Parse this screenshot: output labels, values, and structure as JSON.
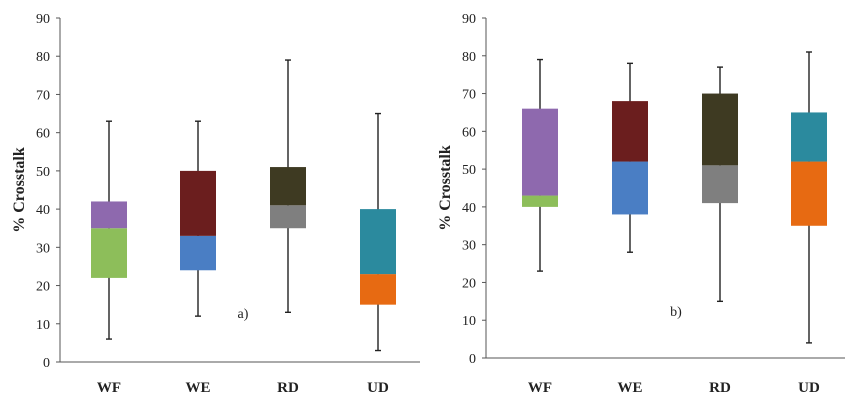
{
  "chart_data": [
    {
      "type": "box",
      "panel_label": "a)",
      "ylabel": "% Crosstalk",
      "ylim": [
        0,
        90
      ],
      "yticks": [
        0,
        10,
        20,
        30,
        40,
        50,
        60,
        70,
        80,
        90
      ],
      "categories": [
        "WF",
        "WE",
        "RD",
        "UD"
      ],
      "boxes": [
        {
          "category": "WF",
          "min": 6,
          "q1": 22,
          "median": 35,
          "q3": 42,
          "max": 63,
          "lower_color": "#8DBE5A",
          "upper_color": "#8E69AE"
        },
        {
          "category": "WE",
          "min": 12,
          "q1": 24,
          "median": 33,
          "q3": 50,
          "max": 63,
          "lower_color": "#4A7EC4",
          "upper_color": "#6B1E1E"
        },
        {
          "category": "RD",
          "min": 13,
          "q1": 35,
          "median": 41,
          "q3": 51,
          "max": 79,
          "lower_color": "#7F7F7F",
          "upper_color": "#3E3A22"
        },
        {
          "category": "UD",
          "min": 3,
          "q1": 15,
          "median": 23,
          "q3": 40,
          "max": 65,
          "lower_color": "#E76A12",
          "upper_color": "#2B8A9E"
        }
      ]
    },
    {
      "type": "box",
      "panel_label": "b)",
      "ylabel": "% Crosstalk",
      "ylim": [
        0,
        90
      ],
      "yticks": [
        0,
        10,
        20,
        30,
        40,
        50,
        60,
        70,
        80,
        90
      ],
      "categories": [
        "WF",
        "WE",
        "RD",
        "UD"
      ],
      "boxes": [
        {
          "category": "WF",
          "min": 23,
          "q1": 40,
          "median": 43,
          "q3": 66,
          "max": 79,
          "lower_color": "#8DBE5A",
          "upper_color": "#8E69AE"
        },
        {
          "category": "WE",
          "min": 28,
          "q1": 38,
          "median": 52,
          "q3": 68,
          "max": 78,
          "lower_color": "#4A7EC4",
          "upper_color": "#6B1E1E"
        },
        {
          "category": "RD",
          "min": 15,
          "q1": 41,
          "median": 51,
          "q3": 70,
          "max": 77,
          "lower_color": "#7F7F7F",
          "upper_color": "#3E3A22"
        },
        {
          "category": "UD",
          "min": 4,
          "q1": 35,
          "median": 52,
          "q3": 65,
          "max": 81,
          "lower_color": "#E76A12",
          "upper_color": "#2B8A9E"
        }
      ]
    }
  ]
}
